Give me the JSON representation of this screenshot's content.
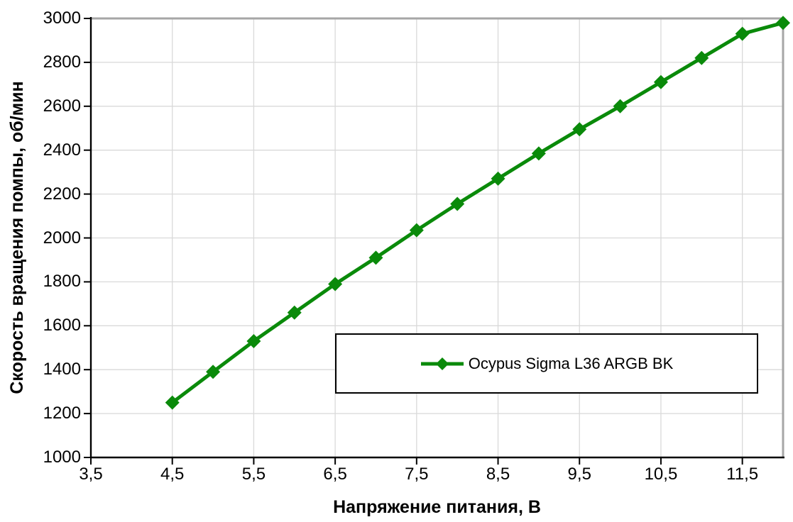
{
  "chart_data": {
    "type": "line",
    "title": "",
    "xlabel": "Напряжение питания, В",
    "ylabel": "Скорость вращения помпы, об/мин",
    "xlim": [
      3.5,
      12
    ],
    "ylim": [
      1000,
      3000
    ],
    "x_ticks": [
      3.5,
      4.5,
      5.5,
      6.5,
      7.5,
      8.5,
      9.5,
      10.5,
      11.5
    ],
    "x_tick_labels": [
      "3,5",
      "4,5",
      "5,5",
      "6,5",
      "7,5",
      "8,5",
      "9,5",
      "10,5",
      "11,5"
    ],
    "y_ticks": [
      1000,
      1200,
      1400,
      1600,
      1800,
      2000,
      2200,
      2400,
      2600,
      2800,
      3000
    ],
    "y_tick_labels": [
      "1000",
      "1200",
      "1400",
      "1600",
      "1800",
      "2000",
      "2200",
      "2400",
      "2600",
      "2800",
      "3000"
    ],
    "grid": true,
    "legend_position": "inside-bottom-right",
    "series": [
      {
        "name": "Ocypus Sigma L36 ARGB BK",
        "color": "#0a8a0a",
        "marker": "diamond",
        "x": [
          4.5,
          5,
          5.5,
          6,
          6.5,
          7,
          7.5,
          8,
          8.5,
          9,
          9.5,
          10,
          10.5,
          11,
          11.5,
          12
        ],
        "values": [
          1250,
          1390,
          1530,
          1660,
          1790,
          1910,
          2035,
          2155,
          2270,
          2385,
          2495,
          2600,
          2710,
          2820,
          2930,
          2980
        ]
      }
    ]
  },
  "colors": {
    "series_green": "#0a8a0a",
    "gridline": "#d9d9d9",
    "plot_border": "#a6a6a6",
    "axis": "#000000",
    "background": "#ffffff",
    "legend_border": "#000000",
    "text": "#000000"
  },
  "legend": {
    "label": "Ocypus Sigma L36 ARGB BK"
  }
}
